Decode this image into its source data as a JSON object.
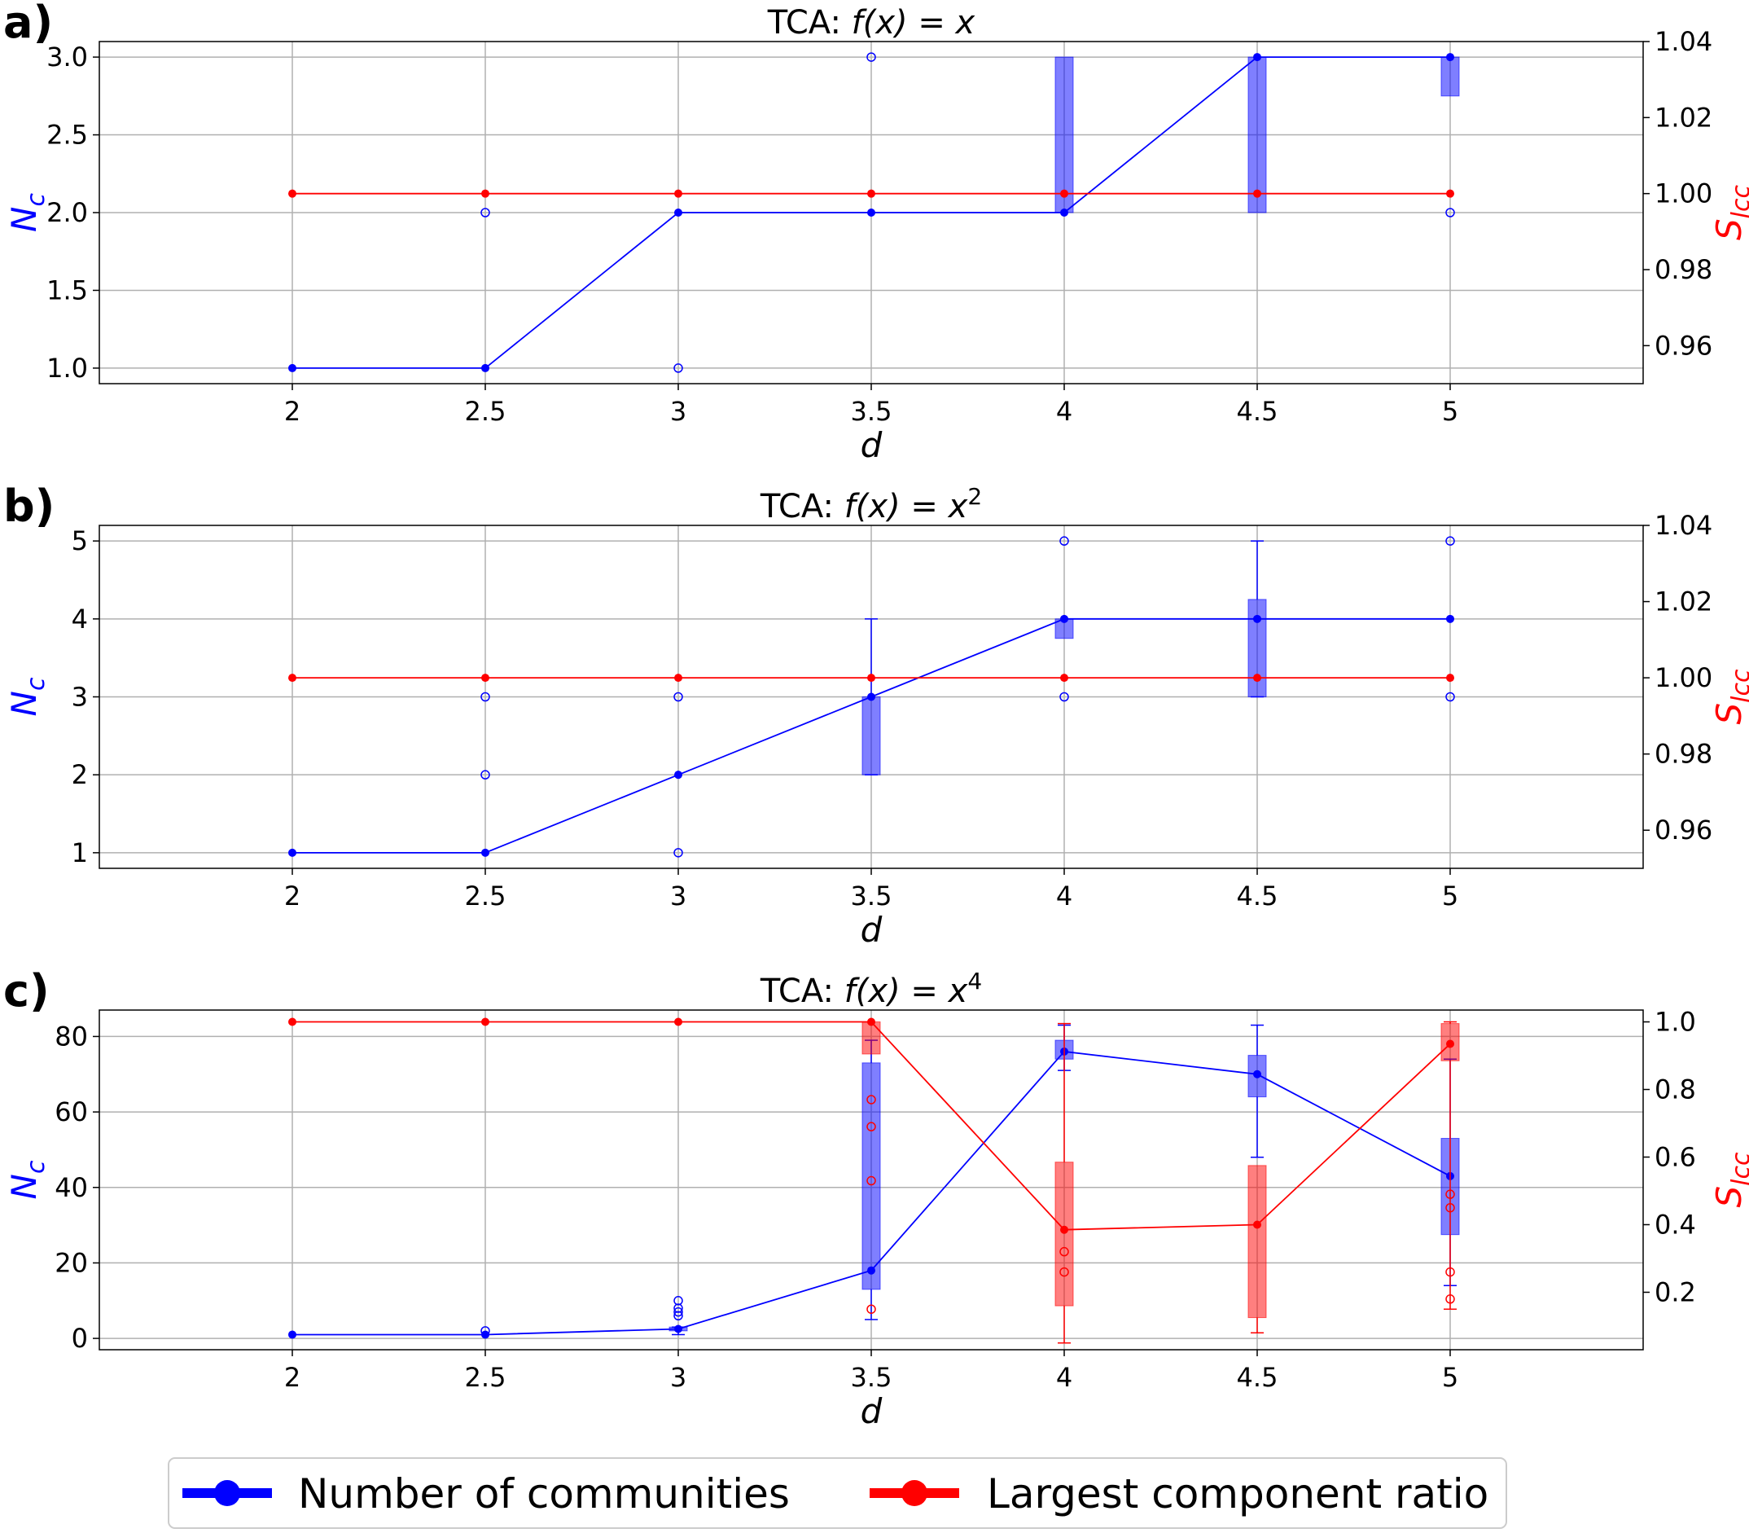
{
  "colors": {
    "blue": "#0000ff",
    "red": "#ff0000",
    "grid": "#b0b0b0"
  },
  "legend": {
    "blue_label": "Number of communities",
    "red_label": "Largest component ratio"
  },
  "chart_data": [
    {
      "panel": "a)",
      "type": "line",
      "title": "TCA: f(x) = x",
      "title_prefix": "TCA: ",
      "title_func": "f(x) = x",
      "title_exp": "",
      "xlabel": "d",
      "ylabel": "N",
      "ylabel_sub": "c",
      "y2label": "S",
      "y2label_sub": "lcc",
      "x": [
        2,
        2.5,
        3,
        3.5,
        4,
        4.5,
        5
      ],
      "x_tick_labels": [
        "2",
        "2.5",
        "3",
        "3.5",
        "4",
        "4.5",
        "5"
      ],
      "xlim": [
        1.5,
        5.5
      ],
      "ylim": [
        0.9,
        3.1
      ],
      "y_ticks": [
        1.0,
        1.5,
        2.0,
        2.5,
        3.0
      ],
      "y_tick_labels": [
        "1.0",
        "1.5",
        "2.0",
        "2.5",
        "3.0"
      ],
      "y2lim": [
        0.95,
        1.04
      ],
      "y2_ticks": [
        0.96,
        0.98,
        1.0,
        1.02,
        1.04
      ],
      "y2_tick_labels": [
        "0.96",
        "0.98",
        "1.00",
        "1.02",
        "1.04"
      ],
      "series": [
        {
          "name": "Number of communities",
          "axis": "left",
          "color": "#0000ff",
          "values": [
            1,
            1,
            2,
            2,
            2,
            3,
            3
          ],
          "boxes": [
            null,
            null,
            null,
            null,
            [
              2,
              3
            ],
            [
              2,
              3
            ],
            [
              2.75,
              3
            ]
          ],
          "whiskers": [
            null,
            null,
            null,
            null,
            null,
            null,
            null
          ],
          "outliers": [
            [],
            [
              2
            ],
            [
              1
            ],
            [
              3
            ],
            [],
            [],
            [
              2
            ]
          ]
        },
        {
          "name": "Largest component ratio",
          "axis": "right",
          "color": "#ff0000",
          "values": [
            1,
            1,
            1,
            1,
            1,
            1,
            1
          ],
          "boxes": [
            null,
            null,
            null,
            null,
            null,
            null,
            null
          ],
          "whiskers": [
            null,
            null,
            null,
            null,
            null,
            null,
            null
          ],
          "outliers": [
            [],
            [],
            [],
            [],
            [],
            [],
            []
          ]
        }
      ]
    },
    {
      "panel": "b)",
      "type": "line",
      "title": "TCA: f(x) = x^2",
      "title_prefix": "TCA: ",
      "title_func": "f(x) = x",
      "title_exp": "2",
      "xlabel": "d",
      "ylabel": "N",
      "ylabel_sub": "c",
      "y2label": "S",
      "y2label_sub": "lcc",
      "x": [
        2,
        2.5,
        3,
        3.5,
        4,
        4.5,
        5
      ],
      "x_tick_labels": [
        "2",
        "2.5",
        "3",
        "3.5",
        "4",
        "4.5",
        "5"
      ],
      "xlim": [
        1.5,
        5.5
      ],
      "ylim": [
        0.8,
        5.2
      ],
      "y_ticks": [
        1,
        2,
        3,
        4,
        5
      ],
      "y_tick_labels": [
        "1",
        "2",
        "3",
        "4",
        "5"
      ],
      "y2lim": [
        0.95,
        1.04
      ],
      "y2_ticks": [
        0.96,
        0.98,
        1.0,
        1.02,
        1.04
      ],
      "y2_tick_labels": [
        "0.96",
        "0.98",
        "1.00",
        "1.02",
        "1.04"
      ],
      "series": [
        {
          "name": "Number of communities",
          "axis": "left",
          "color": "#0000ff",
          "values": [
            1,
            1,
            2,
            3,
            4,
            4,
            4
          ],
          "boxes": [
            null,
            null,
            null,
            [
              2,
              3
            ],
            [
              3.75,
              4
            ],
            [
              3,
              4.25
            ],
            null
          ],
          "whiskers": [
            null,
            null,
            null,
            [
              2,
              4
            ],
            null,
            [
              3,
              5
            ],
            null
          ],
          "outliers": [
            [],
            [
              2,
              3
            ],
            [
              1,
              3
            ],
            [],
            [
              3,
              5
            ],
            [],
            [
              3,
              5
            ]
          ]
        },
        {
          "name": "Largest component ratio",
          "axis": "right",
          "color": "#ff0000",
          "values": [
            1,
            1,
            1,
            1,
            1,
            1,
            1
          ],
          "boxes": [
            null,
            null,
            null,
            null,
            null,
            null,
            null
          ],
          "whiskers": [
            null,
            null,
            null,
            null,
            null,
            null,
            null
          ],
          "outliers": [
            [],
            [],
            [],
            [],
            [],
            [],
            []
          ]
        }
      ]
    },
    {
      "panel": "c)",
      "type": "line",
      "title": "TCA: f(x) = x^4",
      "title_prefix": "TCA: ",
      "title_func": "f(x) = x",
      "title_exp": "4",
      "xlabel": "d",
      "ylabel": "N",
      "ylabel_sub": "c",
      "y2label": "S",
      "y2label_sub": "lcc",
      "x": [
        2,
        2.5,
        3,
        3.5,
        4,
        4.5,
        5
      ],
      "x_tick_labels": [
        "2",
        "2.5",
        "3",
        "3.5",
        "4",
        "4.5",
        "5"
      ],
      "xlim": [
        1.5,
        5.5
      ],
      "ylim": [
        -3,
        87
      ],
      "y_ticks": [
        0,
        20,
        40,
        60,
        80
      ],
      "y_tick_labels": [
        "0",
        "20",
        "40",
        "60",
        "80"
      ],
      "y2lim": [
        0.03,
        1.035
      ],
      "y2_ticks": [
        0.2,
        0.4,
        0.6,
        0.8,
        1.0
      ],
      "y2_tick_labels": [
        "0.2",
        "0.4",
        "0.6",
        "0.8",
        "1.0"
      ],
      "series": [
        {
          "name": "Number of communities",
          "axis": "left",
          "color": "#0000ff",
          "values": [
            1,
            1,
            2.5,
            18,
            76,
            70,
            43
          ],
          "boxes": [
            null,
            null,
            [
              2,
              3
            ],
            [
              13,
              73
            ],
            [
              74,
              79
            ],
            [
              64,
              75
            ],
            [
              27.5,
              53
            ]
          ],
          "whiskers": [
            null,
            null,
            [
              1,
              3
            ],
            [
              5,
              79
            ],
            [
              71,
              83
            ],
            [
              48,
              83
            ],
            [
              14,
              74
            ]
          ],
          "outliers": [
            [],
            [
              2
            ],
            [
              6,
              7,
              8,
              10
            ],
            [],
            [],
            [],
            []
          ]
        },
        {
          "name": "Largest component ratio",
          "axis": "right",
          "color": "#ff0000",
          "values": [
            1.0,
            1.0,
            1.0,
            1.0,
            0.385,
            0.4,
            0.935
          ],
          "boxes": [
            null,
            null,
            null,
            [
              0.905,
              1.0
            ],
            [
              0.16,
              0.585
            ],
            [
              0.125,
              0.575
            ],
            [
              0.885,
              0.995
            ]
          ],
          "whiskers": [
            null,
            null,
            null,
            null,
            [
              0.05,
              0.995
            ],
            [
              0.08,
              null
            ],
            [
              0.15,
              1.0
            ]
          ],
          "outliers": [
            [],
            [],
            [],
            [
              0.15,
              0.53,
              0.69,
              0.77
            ],
            [
              0.26,
              0.32
            ],
            [],
            [
              0.18,
              0.26,
              0.45,
              0.49
            ]
          ]
        }
      ]
    }
  ]
}
